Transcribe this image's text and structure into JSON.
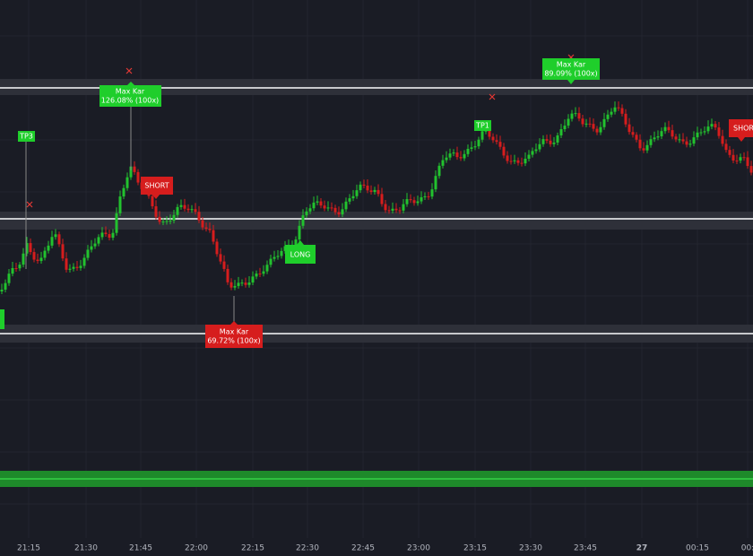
{
  "axis": {
    "times": [
      "21:15",
      "21:30",
      "21:45",
      "22:00",
      "22:15",
      "22:30",
      "22:45",
      "23:00",
      "23:15",
      "23:30",
      "23:45",
      "27",
      "00:15",
      "00:"
    ]
  },
  "badges": {
    "max_kar_1": {
      "title": "Max Kar",
      "text": "126.08% (100x)"
    },
    "max_kar_2": {
      "title": "Max Kar",
      "text": "89.09% (100x)"
    },
    "max_kar_3": {
      "title": "Max Kar",
      "text": "69.72% (100x)"
    },
    "tp3": "TP3",
    "tp1": "TP1",
    "short_1": "SHORT",
    "long": "LONG",
    "short_2": "SHORT"
  }
}
